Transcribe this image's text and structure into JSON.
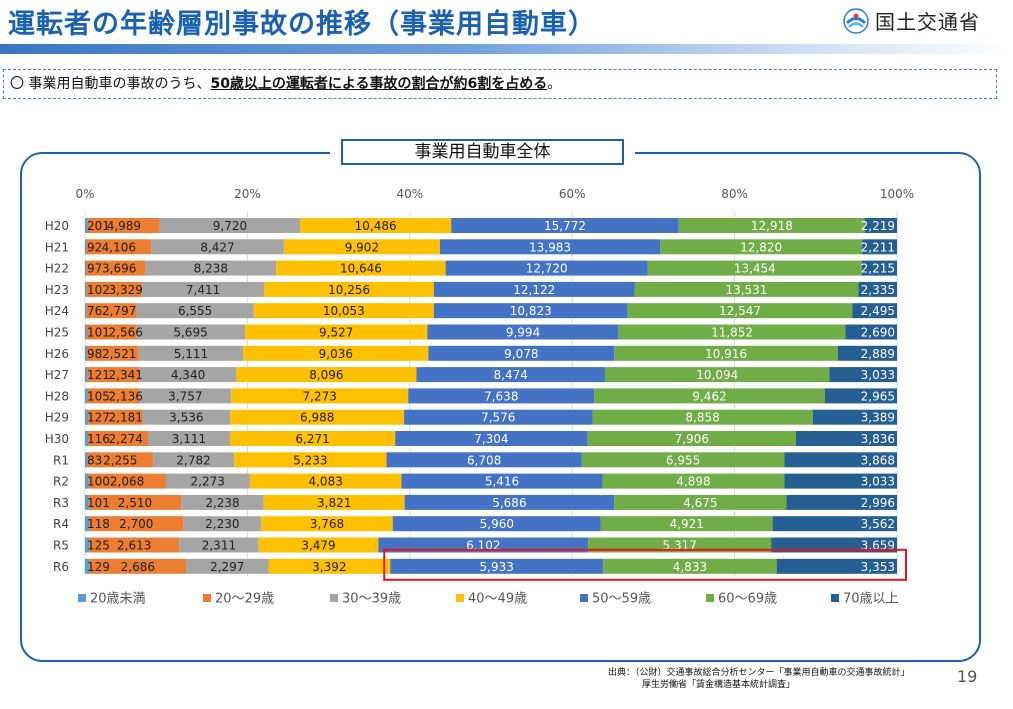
{
  "header": {
    "title": "運転者の年齢層別事故の推移（事業用自動車）",
    "org_name": "国土交通省",
    "title_color": "#1a62b0"
  },
  "notice": {
    "bullet": "〇",
    "text_before": "事業用自動車の事故のうち、",
    "text_emphasis": "50歳以上の運転者による事故の割合が約6割を占める",
    "text_after": "。"
  },
  "chart_data": {
    "type": "bar",
    "orientation": "horizontal",
    "stacked": "percent",
    "title": "事業用自動車全体",
    "x_tick_labels": [
      "0%",
      "20%",
      "40%",
      "60%",
      "80%",
      "100%"
    ],
    "xlim": [
      0,
      100
    ],
    "grid": true,
    "legend_position": "bottom",
    "categories": [
      "H20",
      "H21",
      "H22",
      "H23",
      "H24",
      "H25",
      "H26",
      "H27",
      "H28",
      "H29",
      "H30",
      "R1",
      "R2",
      "R3",
      "R4",
      "R5",
      "R6"
    ],
    "series": [
      {
        "name": "20歳未満",
        "color": "#5b9bd5",
        "values": [
          201,
          92,
          97,
          102,
          76,
          101,
          98,
          121,
          105,
          127,
          116,
          83,
          100,
          101,
          118,
          125,
          129
        ],
        "labels": [
          "201",
          "92",
          "97",
          "102",
          "76",
          "101",
          "98",
          "121",
          "105",
          "127",
          "116",
          "83",
          "100",
          "101",
          "118",
          "125",
          "129"
        ]
      },
      {
        "name": "20〜29歳",
        "color": "#ed7d31",
        "values": [
          4989,
          4106,
          3696,
          3329,
          2797,
          2566,
          2521,
          2341,
          2136,
          2181,
          2274,
          2255,
          2068,
          2510,
          2700,
          2613,
          2686
        ],
        "labels": [
          "4,989",
          "4,106",
          "3,696",
          "3,329",
          "2,797",
          "2,566",
          "2,521",
          "2,341",
          "2,136",
          "2,181",
          "2,274",
          "2,255",
          "2,068",
          "2,510",
          "2,700",
          "2,613",
          "2,686"
        ]
      },
      {
        "name": "30〜39歳",
        "color": "#a5a5a5",
        "values": [
          9720,
          8427,
          8238,
          7411,
          6555,
          5695,
          5111,
          4340,
          3757,
          3536,
          3111,
          2782,
          2273,
          2238,
          2230,
          2311,
          2297
        ],
        "labels": [
          "9,720",
          "8,427",
          "8,238",
          "7,411",
          "6,555",
          "5,695",
          "5,111",
          "4,340",
          "3,757",
          "3,536",
          "3,111",
          "2,782",
          "2,273",
          "2,238",
          "2,230",
          "2,311",
          "2,297"
        ]
      },
      {
        "name": "40〜49歳",
        "color": "#ffc000",
        "values": [
          10486,
          9902,
          10646,
          10256,
          10053,
          9527,
          9036,
          8096,
          7273,
          6988,
          6271,
          5233,
          4083,
          3821,
          3768,
          3479,
          3392
        ],
        "labels": [
          "10,486",
          "9,902",
          "10,646",
          "10,256",
          "10,053",
          "9,527",
          "9,036",
          "8,096",
          "7,273",
          "6,988",
          "6,271",
          "5,233",
          "4,083",
          "3,821",
          "3,768",
          "3,479",
          "3,392"
        ]
      },
      {
        "name": "50〜59歳",
        "color": "#4472c4",
        "values": [
          15772,
          13983,
          12720,
          12122,
          10823,
          9994,
          9078,
          8474,
          7638,
          7576,
          7304,
          6708,
          5416,
          5686,
          5960,
          6102,
          5933
        ],
        "labels": [
          "15,772",
          "13,983",
          "12,720",
          "12,122",
          "10,823",
          "9,994",
          "9,078",
          "8,474",
          "7,638",
          "7,576",
          "7,304",
          "6,708",
          "5,416",
          "5,686",
          "5,960",
          "6,102",
          "5,933"
        ]
      },
      {
        "name": "60〜69歳",
        "color": "#70ad47",
        "values": [
          12918,
          12820,
          13454,
          13531,
          12547,
          11852,
          10916,
          10094,
          9462,
          8858,
          7906,
          6955,
          4898,
          4675,
          4921,
          5317,
          4833
        ],
        "labels": [
          "12,918",
          "12,820",
          "13,454",
          "13,531",
          "12,547",
          "11,852",
          "10,916",
          "10,094",
          "9,462",
          "8,858",
          "7,906",
          "6,955",
          "4,898",
          "4,675",
          "4,921",
          "5,317",
          "4,833"
        ]
      },
      {
        "name": "70歳以上",
        "color": "#255e91",
        "values": [
          2219,
          2211,
          2215,
          2335,
          2495,
          2690,
          2889,
          3033,
          2965,
          3389,
          3836,
          3868,
          3033,
          2996,
          3562,
          3659,
          3353
        ],
        "labels": [
          "2,219",
          "2,211",
          "2,215",
          "2,335",
          "2,495",
          "2,690",
          "2,889",
          "3,033",
          "2,965",
          "3,389",
          "3,836",
          "3,868",
          "3,033",
          "2,996",
          "3,562",
          "3,659",
          "3,353"
        ]
      }
    ],
    "highlight": {
      "category": "R6",
      "from_series": "50〜59歳",
      "color": "#e8141b"
    }
  },
  "source": {
    "line1": "出典：（公財）交通事故総合分析センター「事業用自動車の交通事故統計」",
    "line2": "厚生労働省「賃金構造基本統計調査」"
  },
  "page_number": "19"
}
